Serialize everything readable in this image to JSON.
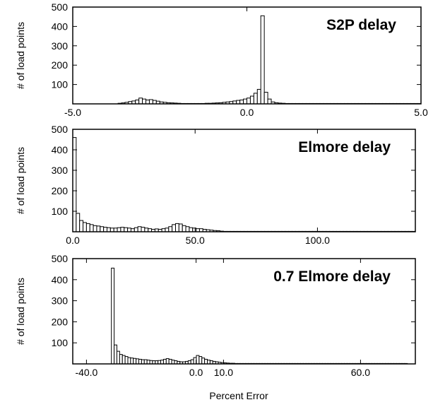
{
  "figure": {
    "xlabel": "Percent Error"
  },
  "chart_data": [
    {
      "type": "bar",
      "title": "S2P delay",
      "ylabel": "# of load points",
      "xlim": [
        -5.0,
        5.0
      ],
      "ylim": [
        0,
        500
      ],
      "xticks": [
        -5.0,
        0.0,
        5.0
      ],
      "xtick_labels": [
        "-5.0",
        "0.0",
        "5.0"
      ],
      "yticks": [
        100,
        200,
        300,
        400,
        500
      ],
      "bin_start": -3.7,
      "bin_width": 0.1,
      "values": [
        3,
        5,
        8,
        12,
        15,
        20,
        30,
        25,
        20,
        22,
        18,
        14,
        10,
        8,
        6,
        5,
        4,
        3,
        2,
        2,
        2,
        2,
        2,
        2,
        2,
        3,
        3,
        4,
        5,
        6,
        8,
        10,
        12,
        15,
        18,
        20,
        25,
        30,
        40,
        55,
        75,
        455,
        60,
        25,
        10,
        6,
        4,
        3,
        2,
        2,
        2,
        2,
        2,
        2,
        2,
        2,
        2,
        2,
        2,
        2,
        2,
        2,
        2,
        2,
        2,
        2,
        2,
        2,
        2,
        2,
        2,
        2,
        2,
        2,
        2,
        2,
        2,
        2,
        2,
        2,
        2,
        2,
        2,
        2,
        2,
        2,
        2,
        2,
        2,
        2,
        2,
        2,
        2,
        2,
        2,
        2,
        2,
        2,
        2,
        2,
        2,
        2,
        2,
        2,
        2,
        2,
        2,
        2,
        2,
        2,
        2,
        2,
        2,
        2,
        2,
        2,
        2,
        2,
        2
      ]
    },
    {
      "type": "bar",
      "title": "Elmore delay",
      "ylabel": "# of load points",
      "xlim": [
        0,
        140
      ],
      "ylim": [
        0,
        500
      ],
      "xticks": [
        0.0,
        50.0,
        100.0
      ],
      "xtick_labels": [
        "0.0",
        "50.0",
        "100.0"
      ],
      "yticks": [
        100,
        200,
        300,
        400,
        500
      ],
      "bin_start": 0,
      "bin_width": 1.4,
      "values": [
        460,
        90,
        55,
        45,
        40,
        35,
        30,
        28,
        25,
        22,
        20,
        18,
        18,
        20,
        22,
        20,
        18,
        15,
        20,
        25,
        22,
        18,
        15,
        12,
        14,
        12,
        15,
        18,
        25,
        35,
        40,
        38,
        30,
        25,
        20,
        18,
        15,
        15,
        12,
        10,
        8,
        6,
        5,
        3,
        2,
        2,
        2,
        2,
        2,
        2,
        2,
        2,
        2,
        2,
        2,
        2,
        2,
        2,
        2,
        2,
        2,
        2,
        2,
        2,
        2,
        2,
        2,
        2,
        2,
        2,
        2,
        2,
        2,
        2,
        2,
        2,
        2,
        2,
        2,
        2,
        2,
        2,
        2,
        2,
        2,
        2,
        2,
        2,
        2,
        2,
        2,
        2,
        2,
        2,
        2,
        2,
        2,
        2,
        2,
        2
      ]
    },
    {
      "type": "bar",
      "title": "0.7 Elmore delay",
      "ylabel": "# of load points",
      "xlim": [
        -45,
        80
      ],
      "ylim": [
        0,
        500
      ],
      "xticks": [
        -40.0,
        0.0,
        10.0,
        60.0
      ],
      "xtick_labels": [
        "-40.0",
        "0.0",
        "10.0",
        "60.0"
      ],
      "yticks": [
        100,
        200,
        300,
        400,
        500
      ],
      "bin_start": -30.9,
      "bin_width": 1.0,
      "values": [
        455,
        90,
        60,
        45,
        40,
        35,
        30,
        28,
        26,
        24,
        22,
        20,
        20,
        18,
        16,
        15,
        15,
        16,
        18,
        22,
        25,
        22,
        18,
        15,
        12,
        10,
        10,
        12,
        15,
        20,
        30,
        40,
        35,
        28,
        22,
        18,
        15,
        12,
        10,
        8,
        6,
        5,
        4,
        3,
        3,
        2,
        2,
        2,
        2,
        2,
        2,
        2,
        2,
        2,
        2,
        2,
        2,
        2,
        2,
        2,
        2,
        2,
        2,
        2,
        2,
        2,
        2,
        2,
        2,
        2,
        2,
        2,
        2,
        2,
        2,
        2,
        2,
        2,
        2,
        2,
        2,
        2,
        2,
        2,
        2,
        2,
        2,
        2,
        2,
        2,
        2,
        2,
        2,
        2,
        2,
        2,
        2,
        2,
        2,
        2,
        2,
        2,
        2,
        2,
        2,
        2,
        2,
        2
      ]
    }
  ]
}
